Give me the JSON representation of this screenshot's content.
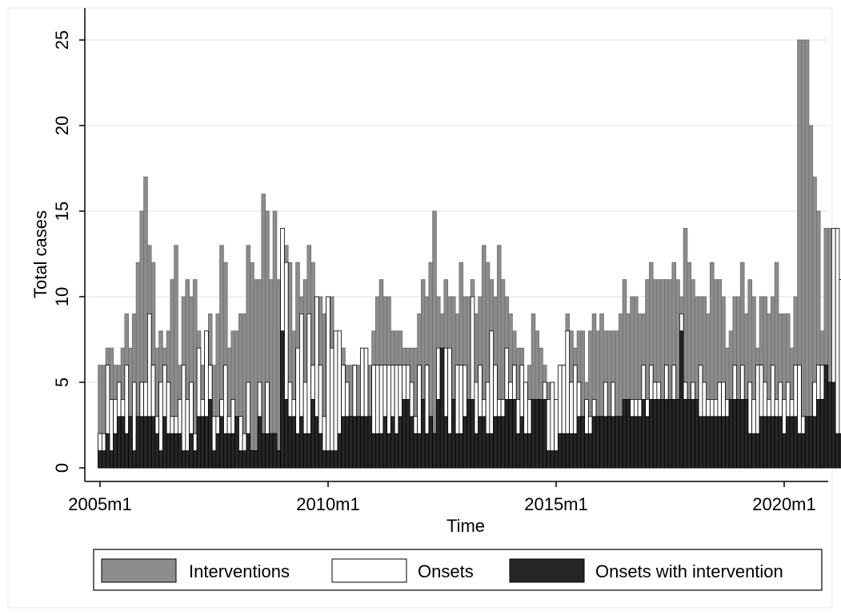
{
  "chart_data": {
    "type": "bar",
    "xlabel": "Time",
    "ylabel": "Total cases",
    "x_tick_labels": [
      "2005m1",
      "2010m1",
      "2015m1",
      "2020m1"
    ],
    "y_tick_labels": [
      "0",
      "5",
      "10",
      "15",
      "20",
      "25"
    ],
    "xlim": [
      "2005m1",
      "2020m8"
    ],
    "ylim": [
      0,
      25
    ],
    "grid": "horizontal",
    "legend_position": "bottom",
    "colors": {
      "Interventions": "#8c8c8c",
      "Onsets": "#ffffff",
      "Onsets with intervention": "#262626"
    },
    "series": [
      {
        "name": "Interventions",
        "values": [
          6,
          6,
          7,
          7,
          6,
          6,
          7,
          9,
          7,
          9,
          12,
          15,
          17,
          13,
          12,
          7,
          8,
          7,
          8,
          11,
          13,
          6,
          10,
          11,
          10,
          11,
          8,
          6,
          8,
          9,
          6,
          9,
          13,
          12,
          7,
          8,
          8,
          9,
          9,
          13,
          12,
          11,
          11,
          16,
          15,
          11,
          15,
          11,
          12,
          13,
          12,
          8,
          12,
          10,
          11,
          13,
          12,
          10,
          10,
          9,
          10,
          10,
          8,
          6,
          7,
          6,
          6,
          6,
          6,
          6,
          6,
          6,
          8,
          10,
          11,
          10,
          10,
          8,
          8,
          8,
          7,
          7,
          7,
          7,
          9,
          11,
          10,
          12,
          15,
          10,
          9,
          11,
          10,
          10,
          9,
          12,
          10,
          10,
          11,
          9,
          10,
          13,
          12,
          11,
          10,
          13,
          11,
          10,
          9,
          8,
          7,
          7,
          5,
          6,
          9,
          8,
          7,
          6,
          5,
          5,
          4,
          5,
          6,
          9,
          8,
          7,
          8,
          8,
          5,
          8,
          9,
          8,
          9,
          8,
          8,
          8,
          8,
          9,
          11,
          9,
          10,
          10,
          9,
          9,
          11,
          12,
          11,
          11,
          11,
          11,
          11,
          12,
          11,
          10,
          14,
          12,
          11,
          10,
          10,
          10,
          9,
          12,
          11,
          11,
          10,
          7,
          8,
          10,
          10,
          12,
          9,
          11,
          10,
          7,
          10,
          10,
          9,
          10,
          12,
          9,
          9,
          9,
          7,
          10,
          25,
          25,
          25,
          20,
          17,
          15,
          8,
          14,
          14,
          14,
          11,
          11
        ]
      },
      {
        "name": "Onsets",
        "values": [
          2,
          2,
          6,
          4,
          4,
          5,
          4,
          6,
          2,
          5,
          2,
          5,
          5,
          9,
          6,
          3,
          5,
          6,
          5,
          3,
          3,
          4,
          6,
          4,
          5,
          2,
          7,
          4,
          8,
          6,
          3,
          3,
          4,
          6,
          3,
          4,
          3,
          3,
          2,
          5,
          1,
          1,
          5,
          1,
          5,
          1,
          2,
          1,
          14,
          12,
          5,
          4,
          7,
          9,
          5,
          9,
          6,
          10,
          6,
          3,
          10,
          7,
          8,
          8,
          6,
          5,
          3,
          6,
          3,
          7,
          7,
          2,
          6,
          6,
          6,
          6,
          6,
          6,
          6,
          6,
          6,
          6,
          5,
          3,
          6,
          3,
          6,
          3,
          2,
          7,
          6,
          7,
          7,
          3,
          6,
          6,
          6,
          4,
          10,
          5,
          6,
          4,
          5,
          8,
          6,
          4,
          4,
          7,
          5,
          6,
          4,
          6,
          5,
          4,
          4,
          4,
          3,
          5,
          4,
          5,
          4,
          6,
          6,
          8,
          5,
          6,
          5,
          3,
          4,
          3,
          4,
          2,
          3,
          5,
          3,
          5,
          3,
          3,
          4,
          4,
          4,
          4,
          4,
          6,
          4,
          6,
          5,
          5,
          4,
          6,
          4,
          6,
          3,
          9,
          5,
          4,
          5,
          4,
          6,
          5,
          4,
          4,
          4,
          5,
          5,
          4,
          4,
          6,
          4,
          6,
          4,
          5,
          4,
          6,
          6,
          5,
          4,
          6,
          4,
          5,
          4,
          5,
          4,
          6,
          6,
          3,
          2,
          2,
          5,
          6,
          6,
          6,
          3,
          14,
          14,
          11
        ]
      },
      {
        "name": "Onsets with intervention",
        "values": [
          1,
          1,
          2,
          1,
          2,
          3,
          3,
          2,
          3,
          1,
          3,
          3,
          3,
          3,
          3,
          2,
          1,
          3,
          2,
          2,
          2,
          2,
          1,
          1,
          2,
          1,
          3,
          3,
          3,
          4,
          1,
          2,
          3,
          2,
          2,
          2,
          3,
          1,
          1,
          2,
          1,
          1,
          3,
          2,
          2,
          2,
          2,
          1,
          8,
          4,
          3,
          3,
          2,
          3,
          2,
          2,
          4,
          3,
          2,
          1,
          1,
          1,
          1,
          2,
          3,
          3,
          3,
          3,
          3,
          3,
          3,
          3,
          2,
          2,
          2,
          3,
          2,
          3,
          2,
          3,
          4,
          4,
          3,
          2,
          2,
          4,
          2,
          3,
          2,
          4,
          7,
          3,
          2,
          4,
          2,
          2,
          3,
          4,
          4,
          2,
          3,
          3,
          2,
          2,
          3,
          3,
          3,
          4,
          4,
          4,
          2,
          3,
          2,
          2,
          4,
          4,
          4,
          4,
          1,
          1,
          1,
          2,
          2,
          2,
          2,
          2,
          3,
          3,
          2,
          2,
          3,
          3,
          3,
          3,
          3,
          3,
          3,
          3,
          4,
          4,
          3,
          3,
          3,
          4,
          3,
          4,
          4,
          4,
          4,
          4,
          4,
          4,
          4,
          8,
          4,
          4,
          4,
          4,
          3,
          3,
          3,
          3,
          3,
          3,
          3,
          3,
          4,
          4,
          4,
          4,
          4,
          2,
          2,
          2,
          3,
          3,
          3,
          3,
          3,
          3,
          2,
          3,
          3,
          3,
          2,
          2,
          3,
          3,
          3,
          4,
          4,
          6,
          5,
          5,
          2,
          2
        ]
      }
    ]
  }
}
